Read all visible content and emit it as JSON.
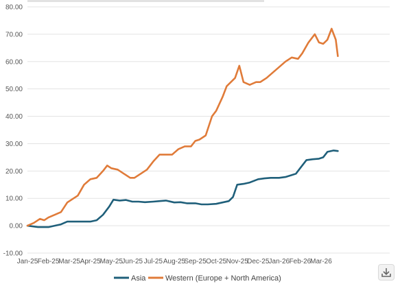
{
  "chart_data": {
    "type": "line",
    "title": "",
    "xlabel": "",
    "ylabel": "",
    "ylim": [
      -10,
      80
    ],
    "yticks": [
      -10,
      0,
      10,
      20,
      30,
      40,
      50,
      60,
      70,
      80
    ],
    "ytick_labels": [
      "-10.00",
      "0.00",
      "10.00",
      "20.00",
      "30.00",
      "40.00",
      "50.00",
      "60.00",
      "70.00",
      "80.00"
    ],
    "xtick_labels": [
      "Jan-25",
      "Feb-25",
      "Mar-25",
      "Apr-25",
      "May-25",
      "Jun-25",
      "Jul-25",
      "Aug-25",
      "Sep-25",
      "Oct-25",
      "Nov-25",
      "Dec-25",
      "Jan-26",
      "Feb-26",
      "Mar-26"
    ],
    "grid": "horizontal",
    "legend_position": "bottom",
    "series": [
      {
        "name": "Asia",
        "color": "#1f5f7a",
        "x": [
          0,
          0.5,
          1,
          1.3,
          1.6,
          1.9,
          2.2,
          2.6,
          3,
          3.3,
          3.6,
          3.9,
          4.1,
          4.4,
          4.7,
          5,
          5.3,
          5.6,
          6,
          6.3,
          6.6,
          7,
          7.3,
          7.6,
          8,
          8.3,
          8.6,
          9,
          9.3,
          9.6,
          9.8,
          10,
          10.3,
          10.6,
          11,
          11.3,
          11.6,
          12,
          12.3,
          12.6,
          12.8,
          13,
          13.3,
          13.6,
          13.9,
          14.1,
          14.3,
          14.6,
          14.8
        ],
        "values": [
          0,
          -0.5,
          -0.5,
          0,
          0.5,
          1.5,
          1.5,
          1.5,
          1.5,
          2,
          4,
          7,
          9.5,
          9.2,
          9.4,
          8.8,
          8.8,
          8.6,
          8.8,
          9,
          9.2,
          8.5,
          8.6,
          8.2,
          8.2,
          7.8,
          7.8,
          8,
          8.5,
          9,
          10.5,
          15,
          15.3,
          15.8,
          17,
          17.3,
          17.5,
          17.5,
          17.8,
          18.5,
          19,
          21,
          24,
          24.3,
          24.5,
          25,
          27,
          27.5,
          27.3
        ]
      },
      {
        "name": "Western (Europe + North America)",
        "color": "#e07b39",
        "x": [
          0,
          0.3,
          0.6,
          0.8,
          1,
          1.3,
          1.6,
          1.9,
          2.1,
          2.4,
          2.7,
          3,
          3.3,
          3.6,
          3.8,
          4,
          4.3,
          4.6,
          4.9,
          5.1,
          5.4,
          5.7,
          6,
          6.3,
          6.6,
          6.9,
          7.2,
          7.5,
          7.8,
          8,
          8.2,
          8.5,
          8.8,
          9,
          9.3,
          9.5,
          9.7,
          9.9,
          10.1,
          10.3,
          10.6,
          10.9,
          11.1,
          11.4,
          11.7,
          12,
          12.3,
          12.6,
          12.9,
          13.1,
          13.4,
          13.7,
          13.9,
          14.1,
          14.3,
          14.5,
          14.7,
          14.8
        ],
        "values": [
          0,
          1,
          2.5,
          2,
          3,
          4,
          5,
          8.5,
          9.5,
          11,
          15,
          17,
          17.5,
          20,
          22,
          21,
          20.5,
          19,
          17.5,
          17.5,
          19,
          20.5,
          23.5,
          26,
          26,
          26,
          28,
          29,
          29,
          31,
          31.5,
          33,
          40,
          42,
          47,
          51,
          52.5,
          54,
          58.5,
          52.5,
          51.5,
          52.5,
          52.5,
          54,
          56,
          58,
          60,
          61.5,
          61,
          63,
          67,
          70,
          67,
          66.5,
          68,
          72,
          68,
          62
        ]
      }
    ]
  }
}
